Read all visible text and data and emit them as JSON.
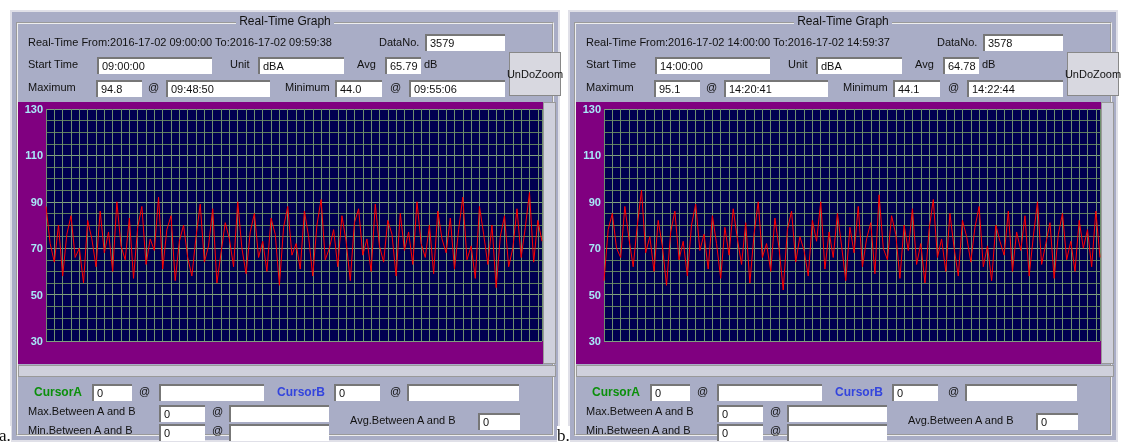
{
  "chart_data": [
    {
      "type": "line",
      "title": "Real-Time Graph",
      "color": "#ff0000",
      "ylim": [
        30,
        130
      ],
      "yticks": [
        30,
        50,
        70,
        90,
        110,
        130
      ],
      "grid": true,
      "marker": "none",
      "tick_labels": "y",
      "categories": [
        null,
        null,
        null,
        null,
        null,
        null,
        null,
        null,
        null,
        null,
        null,
        null,
        null,
        null,
        null,
        null,
        null,
        null,
        null,
        null,
        null,
        null,
        null,
        null,
        null,
        null,
        null,
        null,
        null,
        null,
        null,
        null,
        null,
        null,
        null,
        null,
        null,
        null,
        null,
        null,
        null,
        null,
        null,
        null,
        null,
        null,
        null,
        null,
        null,
        null,
        null,
        null,
        null,
        null,
        null,
        null,
        null,
        null,
        null,
        null,
        null,
        null,
        null,
        null,
        null,
        null,
        null,
        null,
        null,
        null,
        null,
        null,
        null,
        null,
        null,
        null,
        null,
        null,
        null,
        null,
        null,
        null,
        null,
        null,
        null,
        null,
        null,
        null,
        null,
        null,
        null,
        null,
        null,
        null,
        null,
        null,
        null,
        null,
        null,
        null,
        null,
        null,
        null,
        null,
        null,
        null,
        null,
        null,
        null,
        null,
        null,
        null,
        null,
        null,
        null,
        null,
        null,
        null,
        null,
        null
      ],
      "values": [
        88,
        72,
        64,
        80,
        58,
        76,
        84,
        66,
        70,
        55,
        82,
        74,
        62,
        86,
        68,
        77,
        60,
        90,
        71,
        65,
        83,
        57,
        79,
        88,
        63,
        74,
        69,
        92,
        61,
        78,
        84,
        56,
        73,
        80,
        66,
        58,
        75,
        89,
        64,
        71,
        87,
        55,
        68,
        81,
        74,
        62,
        90,
        70,
        59,
        77,
        85,
        66,
        73,
        60,
        83,
        76,
        54,
        79,
        88,
        67,
        72,
        61,
        86,
        75,
        58,
        80,
        91,
        65,
        70,
        78,
        62,
        84,
        73,
        56,
        81,
        87,
        67,
        74,
        60,
        89,
        71,
        64,
        82,
        76,
        58,
        85,
        69,
        77,
        63,
        90,
        72,
        66,
        80,
        59,
        86,
        74,
        68,
        83,
        61,
        78,
        92,
        65,
        71,
        57,
        88,
        76,
        63,
        80,
        53,
        75,
        84,
        62,
        70,
        87,
        66,
        79,
        94,
        64,
        82,
        73
      ],
      "annotations": [
        "Real-Time From:2016-17-02 09:00:00 To:2016-17-02 09:59:38",
        "DataNo.",
        "3579",
        "Start Time",
        "09:00:00",
        "Unit",
        "dBA",
        "Avg",
        "65.79",
        "dB",
        "UnDoZoom",
        "Maximum",
        "94.8",
        "@",
        "09:48:50",
        "Minimum",
        "44.0",
        "@",
        "09:55:06",
        "CursorA",
        "0",
        "@",
        "CursorB",
        "0",
        "@",
        "Max.Between A and B",
        "0",
        "@",
        "Min.Between A and B",
        "0",
        "@",
        "Avg.Between A and B",
        "0",
        "a."
      ]
    },
    {
      "type": "line",
      "title": "Real-Time Graph",
      "color": "#ff0000",
      "ylim": [
        30,
        130
      ],
      "yticks": [
        30,
        50,
        70,
        90,
        110,
        130
      ],
      "grid": true,
      "marker": "none",
      "tick_labels": "y",
      "categories": [
        null,
        null,
        null,
        null,
        null,
        null,
        null,
        null,
        null,
        null,
        null,
        null,
        null,
        null,
        null,
        null,
        null,
        null,
        null,
        null,
        null,
        null,
        null,
        null,
        null,
        null,
        null,
        null,
        null,
        null,
        null,
        null,
        null,
        null,
        null,
        null,
        null,
        null,
        null,
        null,
        null,
        null,
        null,
        null,
        null,
        null,
        null,
        null,
        null,
        null,
        null,
        null,
        null,
        null,
        null,
        null,
        null,
        null,
        null,
        null,
        null,
        null,
        null,
        null,
        null,
        null,
        null,
        null,
        null,
        null,
        null,
        null,
        null,
        null,
        null,
        null,
        null,
        null,
        null,
        null,
        null,
        null,
        null,
        null,
        null,
        null,
        null,
        null,
        null,
        null,
        null,
        null,
        null,
        null,
        null,
        null,
        null,
        null,
        null,
        null,
        null,
        null,
        null,
        null,
        null,
        null,
        null,
        null,
        null,
        null,
        null,
        null,
        null,
        null,
        null,
        null,
        null,
        null,
        null,
        null
      ],
      "values": [
        56,
        78,
        85,
        70,
        66,
        88,
        74,
        62,
        80,
        95,
        68,
        75,
        60,
        82,
        71,
        54,
        77,
        86,
        65,
        73,
        58,
        80,
        89,
        69,
        76,
        61,
        84,
        72,
        57,
        79,
        67,
        87,
        74,
        63,
        81,
        55,
        76,
        90,
        66,
        72,
        60,
        83,
        70,
        52,
        78,
        86,
        64,
        75,
        69,
        58,
        82,
        73,
        90,
        61,
        77,
        66,
        85,
        71,
        56,
        79,
        68,
        88,
        62,
        74,
        81,
        59,
        93,
        70,
        65,
        84,
        76,
        57,
        80,
        69,
        87,
        63,
        72,
        55,
        78,
        91,
        66,
        74,
        60,
        85,
        70,
        58,
        82,
        75,
        64,
        79,
        88,
        62,
        71,
        56,
        80,
        73,
        67,
        86,
        60,
        77,
        69,
        84,
        58,
        75,
        90,
        63,
        72,
        81,
        57,
        76,
        85,
        65,
        73,
        60,
        82,
        70,
        78,
        62,
        86,
        66
      ],
      "annotations": [
        "Real-Time From:2016-17-02 14:00:00 To:2016-17-02 14:59:37",
        "DataNo.",
        "3578",
        "Start Time",
        "14:00:00",
        "Unit",
        "dBA",
        "Avg",
        "64.78",
        "dB",
        "UnDoZoom",
        "Maximum",
        "95.1",
        "@",
        "14:20:41",
        "Minimum",
        "44.1",
        "@",
        "14:22:44",
        "CursorA",
        "0",
        "@",
        "CursorB",
        "0",
        "@",
        "Max.Between A and B",
        "0",
        "@",
        "Min.Between A and B",
        "0",
        "@",
        "Avg.Between A and B",
        "0",
        "b."
      ]
    }
  ]
}
